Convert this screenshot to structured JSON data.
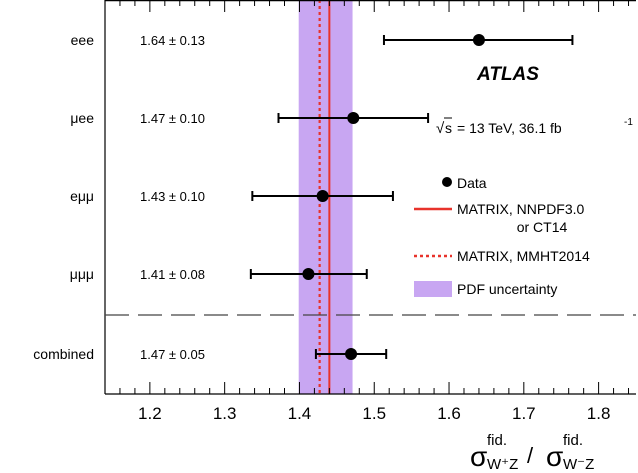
{
  "chart_data": {
    "type": "scatter",
    "xlim": [
      1.14,
      1.85
    ],
    "x_ticks": [
      "1.2",
      "1.3",
      "1.4",
      "1.5",
      "1.6",
      "1.7",
      "1.8"
    ],
    "x_tick_values": [
      1.2,
      1.3,
      1.4,
      1.5,
      1.6,
      1.7,
      1.8
    ],
    "xlabel": {
      "sigma1": "σ",
      "sup1": "fid.",
      "sub1": "W⁺Z",
      "slash": "/",
      "sigma2": "σ",
      "sup2": "fid.",
      "sub2": "W⁻Z"
    },
    "channels": [
      {
        "label": "eee",
        "value_text": "1.64 ± 0.13",
        "value": 1.64,
        "xerr_low": 1.513,
        "xerr_high": 1.765
      },
      {
        "label": "μee",
        "value_text": "1.47 ± 0.10",
        "value": 1.472,
        "xerr_low": 1.372,
        "xerr_high": 1.572
      },
      {
        "label": "eμμ",
        "value_text": "1.43 ± 0.10",
        "value": 1.431,
        "xerr_low": 1.337,
        "xerr_high": 1.525
      },
      {
        "label": "μμμ",
        "value_text": "1.41 ± 0.08",
        "value": 1.412,
        "xerr_low": 1.335,
        "xerr_high": 1.49
      },
      {
        "label": "combined",
        "value_text": "1.47 ± 0.05",
        "value": 1.469,
        "xerr_low": 1.422,
        "xerr_high": 1.516
      }
    ],
    "predictions": {
      "nnpdf_line": 1.44,
      "mmht_line": 1.427,
      "pdf_band": [
        1.399,
        1.471
      ]
    },
    "experiment": "ATLAS",
    "energy_label": {
      "sqrt_sym": "√",
      "s_text": "s",
      "text": "= 13 TeV, 36.1 fb",
      "sup": "-1"
    },
    "legend": {
      "data": "Data",
      "nnpdf_line1": "MATRIX, NNPDF3.0",
      "nnpdf_line2": "or CT14",
      "mmht": "MATRIX, MMHT2014",
      "band": "PDF uncertainty"
    },
    "colors": {
      "band": "#c8a6f2",
      "nnpdf": "#e8332b",
      "mmht": "#e8332b",
      "marker": "#000000",
      "separator": "#444444"
    }
  }
}
